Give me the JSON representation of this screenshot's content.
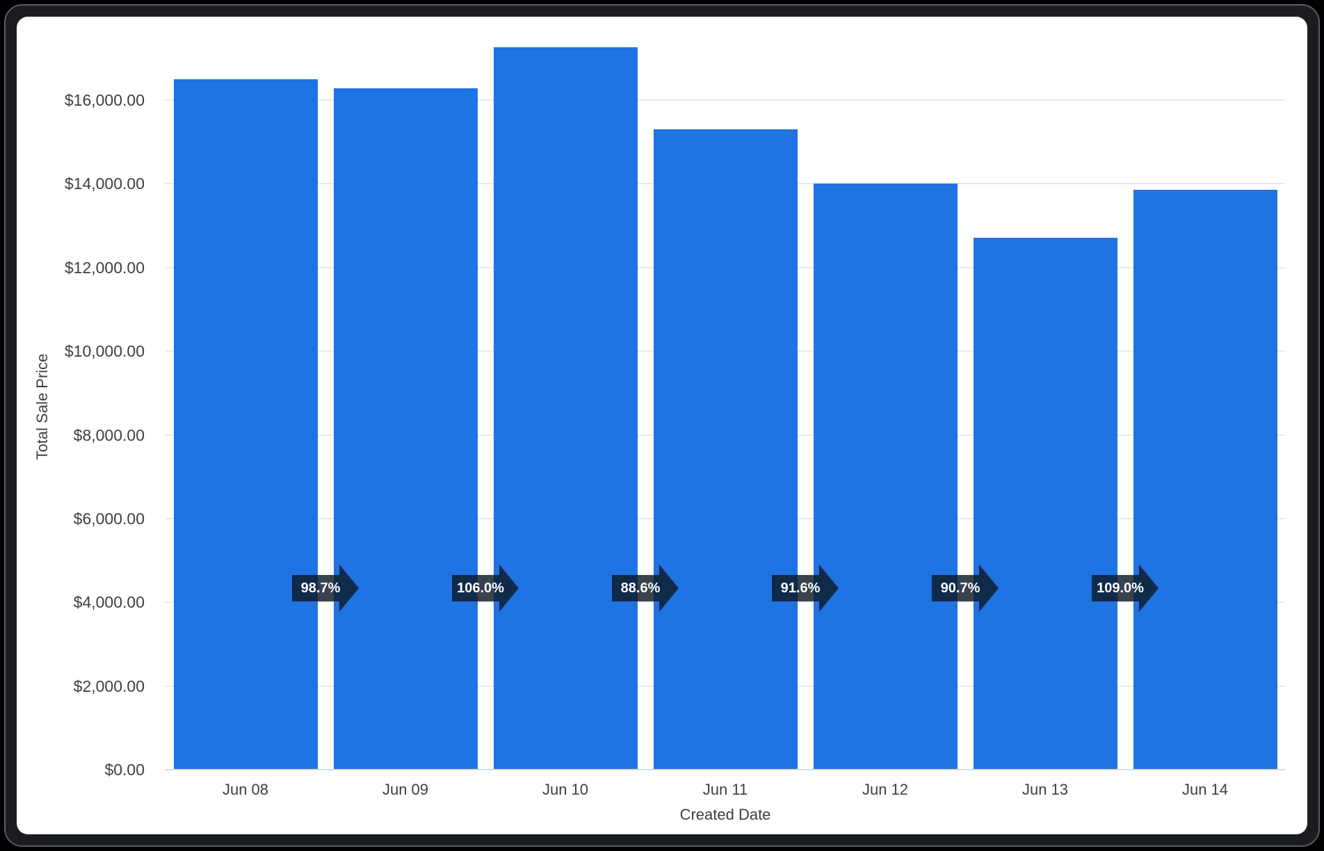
{
  "window": {
    "background": "#000000",
    "frame_fill": "#1a1c1f",
    "frame_border": "#5a5e64",
    "card_background": "#ffffff"
  },
  "chart_data": {
    "type": "bar",
    "title": "",
    "xlabel": "Created Date",
    "ylabel": "Total Sale Price",
    "categories": [
      "Jun 08",
      "Jun 09",
      "Jun 10",
      "Jun 11",
      "Jun 12",
      "Jun 13",
      "Jun 14"
    ],
    "values": [
      16500,
      16286,
      17263,
      15295,
      14010,
      12707,
      13851
    ],
    "bar_color": "#2073e2",
    "ylim": [
      0,
      17400
    ],
    "yticks": [
      0,
      2000,
      4000,
      6000,
      8000,
      10000,
      12000,
      14000,
      16000
    ],
    "ytick_labels": [
      "$0.00",
      "$2,000.00",
      "$4,000.00",
      "$6,000.00",
      "$8,000.00",
      "$10,000.00",
      "$12,000.00",
      "$14,000.00",
      "$16,000.00"
    ],
    "grid": true,
    "legend_position": "none",
    "axis_text_color": "#3c4043",
    "gridline_color": "#e8eaed",
    "baseline_color": "#dadce0",
    "period_over_period_badges": {
      "labels": [
        "98.7%",
        "106.0%",
        "88.6%",
        "91.6%",
        "90.7%",
        "109.0%"
      ],
      "fill": "#0c1a28",
      "opacity": 0.82,
      "text_color": "#ffffff",
      "anchor_value": 4335
    }
  }
}
